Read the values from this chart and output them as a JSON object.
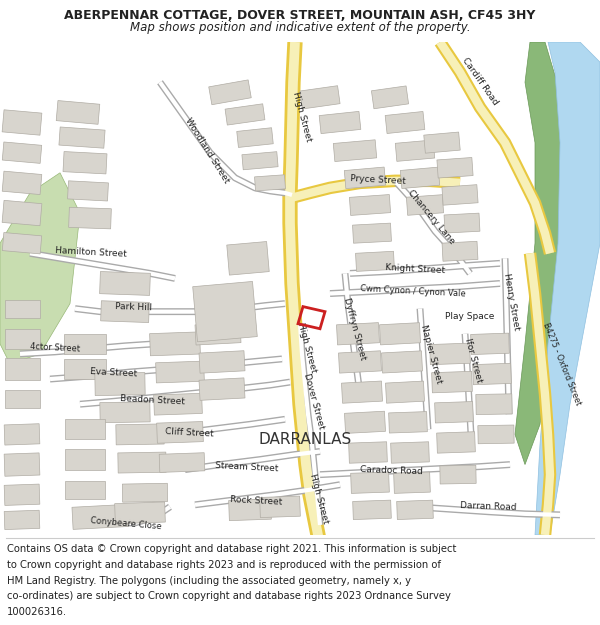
{
  "title": "ABERPENNAR COTTAGE, DOVER STREET, MOUNTAIN ASH, CF45 3HY",
  "subtitle": "Map shows position and indicative extent of the property.",
  "footer_line1": "Contains OS data © Crown copyright and database right 2021. This information is subject",
  "footer_line2": "to Crown copyright and database rights 2023 and is reproduced with the permission of",
  "footer_line3": "HM Land Registry. The polygons (including the associated geometry, namely x, y",
  "footer_line4": "co-ordinates) are subject to Crown copyright and database rights 2023 Ordnance Survey",
  "footer_line5": "100026316.",
  "title_fontsize": 9.0,
  "subtitle_fontsize": 8.5,
  "footer_fontsize": 7.2,
  "bg_color": "#ffffff",
  "map_bg": "#f5f3ef",
  "building_fill": "#d8d5ce",
  "building_edge": "#b0aca4",
  "road_yellow_fill": "#f7f0b8",
  "road_yellow_edge": "#e8c840",
  "road_white_fill": "#ffffff",
  "road_white_edge": "#aaaaaa",
  "water_color": "#b0d8f0",
  "green_color": "#c8ddb0",
  "green_dark": "#98b878",
  "plot_color": "#cc2020",
  "text_color": "#222222"
}
